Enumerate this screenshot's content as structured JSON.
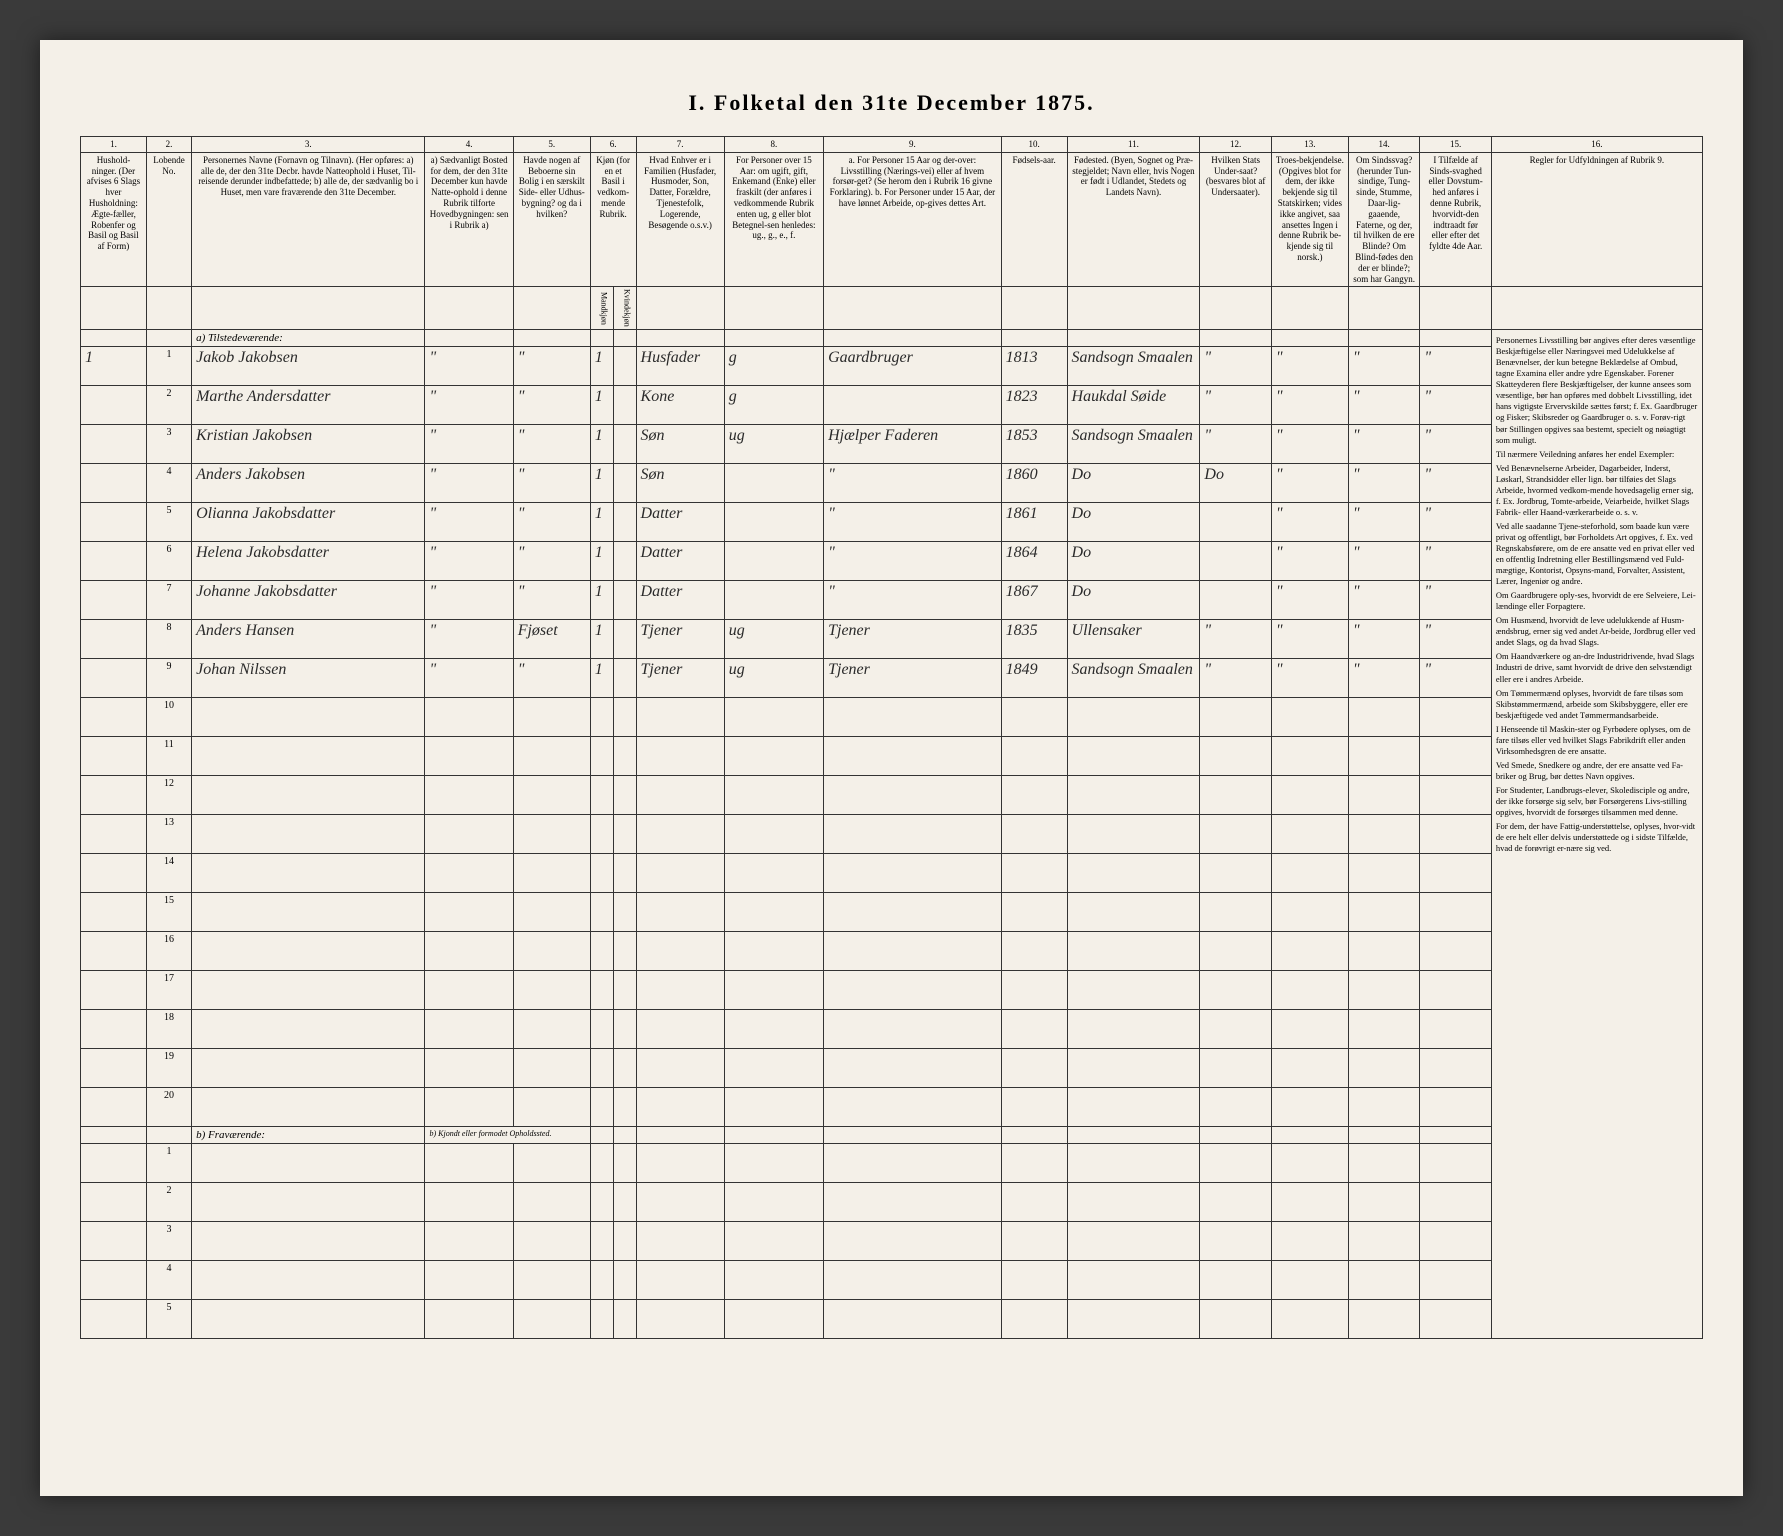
{
  "title": "I. Folketal den 31te December 1875.",
  "columns": {
    "1": {
      "num": "1.",
      "head": "Hushold-\nninger.\n(Der afvises 6 Slags hver Husholdning: Ægte-fæller, Robenfer og Basil og Basil af Form)"
    },
    "2": {
      "num": "2.",
      "head": "Lobende No."
    },
    "3": {
      "num": "3.",
      "head": "Personernes Navne (Fornavn og Tilnavn).\n(Her opføres:\na) alle de, der den 31te Decbr. havde Natteophold i Huset, Til-reisende derunder indbefattede;\nb) alle de, der sædvanlig bo i Huset, men vare fraværende den 31te December."
    },
    "4": {
      "num": "4.",
      "head": "a) Sædvanligt Bosted for dem, der den 31te December kun havde Natte-ophold i denne Rubrik tilforte Hovedbygningen: sen i Rubrik a)"
    },
    "5": {
      "num": "5.",
      "head": "Havde nogen af Beboerne sin Bolig i en særskilt Side- eller Udhus-bygning? og da i hvilken?"
    },
    "6": {
      "num": "6.",
      "head": "Kjøn (for en et Basil i vedkom-mende Rubrik."
    },
    "7": {
      "num": "7.",
      "head": "Hvad Enhver er i Familien\n(Husfader, Husmoder, Son, Datter, Forældre, Tjenestefolk, Logerende, Besøgende o.s.v.)"
    },
    "8": {
      "num": "8.",
      "head": "For Personer over 15 Aar: om ugift, gift, Enkemand (Enke) eller fraskilt (der anføres i vedkommende Rubrik enten ug, g eller blot Betegnel-sen henledes: ug., g., e., f."
    },
    "9": {
      "num": "9.",
      "head": "a. For Personer 15 Aar og der-over: Livsstilling (Nærings-vei) eller af hvem forsør-get? (Se herom den i Rubrik 16 givne Forklaring).\nb. For Personer under 15 Aar, der have lønnet Arbeide, op-gives dettes Art."
    },
    "10": {
      "num": "10.",
      "head": "Fødsels-aar."
    },
    "11": {
      "num": "11.",
      "head": "Fødested.\n(Byen, Sognet og Præ-stegjeldet; Navn eller, hvis Nogen er født i Udlandet, Stedets og Landets Navn)."
    },
    "12": {
      "num": "12.",
      "head": "Hvilken Stats Under-saat?\n(besvares blot af Undersaater)."
    },
    "13": {
      "num": "13.",
      "head": "Troes-bekjendelse.\n(Opgives blot for dem, der ikke bekjende sig til Statskirken; vides ikke angivet, saa ansettes Ingen i denne Rubrik be-kjende sig til norsk.)"
    },
    "14": {
      "num": "14.",
      "head": "Om Sindssvag? (herunder Tun-sindige, Tung-sinde, Stumme, Daar-lig-gaaende, Faterne, og der, til hvilken de ere Blinde? Om Blind-fødes den der er blinde?; som har Gangyn."
    },
    "15": {
      "num": "15.",
      "head": "I Tilfælde af Sinds-svaghed eller Dovstum-hed anføres i denne Rubrik, hvorvidt-den indtraadt før eller efter det fyldte 4de Aar."
    },
    "16": {
      "num": "16.",
      "head": "Regler for Udfyldningen\naf\nRubrik 9."
    }
  },
  "subheads": {
    "6a": "Mandkjøn",
    "6b": "Kvindekjøn"
  },
  "section_a": "a) Tilstedeværende:",
  "section_b": "b) Fraværende:",
  "section_b_sub": "b) Kjondt eller formodet Opholdssted.",
  "rows": [
    {
      "hh": "1",
      "n": "1",
      "name": "Jakob Jakobsen",
      "c4": "\"",
      "c5": "\"",
      "sex": "1",
      "fam": "Husfader",
      "stat": "g",
      "occ": "Gaardbruger",
      "year": "1813",
      "place": "Sandsogn Smaalen",
      "c12": "\"",
      "c13": "\"",
      "c14": "\"",
      "c15": "\""
    },
    {
      "hh": "",
      "n": "2",
      "name": "Marthe Andersdatter",
      "c4": "\"",
      "c5": "\"",
      "sex": "1",
      "fam": "Kone",
      "stat": "g",
      "occ": "",
      "year": "1823",
      "place": "Haukdal Søide",
      "c12": "\"",
      "c13": "\"",
      "c14": "\"",
      "c15": "\""
    },
    {
      "hh": "",
      "n": "3",
      "name": "Kristian Jakobsen",
      "c4": "\"",
      "c5": "\"",
      "sex": "1",
      "fam": "Søn",
      "stat": "ug",
      "occ": "Hjælper Faderen",
      "year": "1853",
      "place": "Sandsogn Smaalen",
      "c12": "\"",
      "c13": "\"",
      "c14": "\"",
      "c15": "\""
    },
    {
      "hh": "",
      "n": "4",
      "name": "Anders Jakobsen",
      "c4": "\"",
      "c5": "\"",
      "sex": "1",
      "fam": "Søn",
      "stat": "",
      "occ": "\"",
      "year": "1860",
      "place": "Do",
      "c12": "Do",
      "c13": "\"",
      "c14": "\"",
      "c15": "\""
    },
    {
      "hh": "",
      "n": "5",
      "name": "Olianna Jakobsdatter",
      "c4": "\"",
      "c5": "\"",
      "sex": "1",
      "fam": "Datter",
      "stat": "",
      "occ": "\"",
      "year": "1861",
      "place": "Do",
      "c12": "",
      "c13": "\"",
      "c14": "\"",
      "c15": "\""
    },
    {
      "hh": "",
      "n": "6",
      "name": "Helena Jakobsdatter",
      "c4": "\"",
      "c5": "\"",
      "sex": "1",
      "fam": "Datter",
      "stat": "",
      "occ": "\"",
      "year": "1864",
      "place": "Do",
      "c12": "",
      "c13": "\"",
      "c14": "\"",
      "c15": "\""
    },
    {
      "hh": "",
      "n": "7",
      "name": "Johanne Jakobsdatter",
      "c4": "\"",
      "c5": "\"",
      "sex": "1",
      "fam": "Datter",
      "stat": "",
      "occ": "\"",
      "year": "1867",
      "place": "Do",
      "c12": "",
      "c13": "\"",
      "c14": "\"",
      "c15": "\""
    },
    {
      "hh": "",
      "n": "8",
      "name": "Anders Hansen",
      "c4": "\"",
      "c5": "Fjøset",
      "sex": "1",
      "fam": "Tjener",
      "stat": "ug",
      "occ": "Tjener",
      "year": "1835",
      "place": "Ullensaker",
      "c12": "\"",
      "c13": "\"",
      "c14": "\"",
      "c15": "\""
    },
    {
      "hh": "",
      "n": "9",
      "name": "Johan Nilssen",
      "c4": "\"",
      "c5": "\"",
      "sex": "1",
      "fam": "Tjener",
      "stat": "ug",
      "occ": "Tjener",
      "year": "1849",
      "place": "Sandsogn Smaalen",
      "c12": "\"",
      "c13": "\"",
      "c14": "\"",
      "c15": "\""
    }
  ],
  "empty_a": [
    10,
    11,
    12,
    13,
    14,
    15,
    16,
    17,
    18,
    19,
    20
  ],
  "empty_b": [
    1,
    2,
    3,
    4,
    5
  ],
  "instructions": [
    "Personernes Livsstilling bør angives efter deres væsentlige Beskjæftigelse eller Næringsvei med Udelukkelse af Benævnelser, der kun betegne Beklædelse af Ombud, tagne Examina eller andre ydre Egenskaber. Forener Skatteyderen flere Beskjæftigelser, der kunne ansees som væsentlige, bør han opføres med dobbelt Livsstilling, idet hans vigtigste Ervervskilde sættes først; f. Ex. Gaardbruger og Fisker; Skibsreder og Gaardbruger o. s. v. Forøv-rigt bør Stillingen opgives saa bestemt, specielt og nøiagtigt som muligt.",
    "Til nærmere Veiledning anføres her endel Exempler:",
    "Ved Benævnelserne Arbeider, Dagarbeider, Inderst, Løskarl, Strandsidder eller lign. bør tilføies det Slags Arbeide, hvormed vedkom-mende hovedsagelig erner sig, f. Ex. Jordbrug, Tomte-arbeide, Veiarbeide, hvilket Slags Fabrik- eller Haand-værkerarbeide o. s. v.",
    "Ved alle saadanne Tjene-steforhold, som baade kun være privat og offentligt, bør Forholdets Art opgives, f. Ex. ved Regnskabsførere, om de ere ansatte ved en privat eller ved en offentlig Indretning eller Bestillingsmænd ved Fuld-mægtige, Kontorist, Opsyns-mand, Forvalter, Assistent, Lærer, Ingeniør og andre.",
    "Om Gaardbrugere oply-ses, hvorvidt de ere Selveiere, Lei-lændinge eller Forpagtere.",
    "Om Husmænd, hvorvidt de leve udelukkende af Husm-ændsbrug, erner sig ved andet Ar-beide, Jordbrug eller ved andet Slags, og da hvad Slags.",
    "Om Haandværkere og an-dre Industridrivende, hvad Slags Industri de drive, samt hvorvidt de drive den selvstændigt eller ere i andres Arbeide.",
    "Om Tømmermænd oplyses, hvorvidt de fare tilsøs som Skibstømmermænd, arbeide som Skibsbyggere, eller ere beskjæftigede ved andet Tømmermandsarbeide.",
    "I Henseende til Maskin-ster og Fyrbødere oplyses, om de fare tilsøs eller ved hvilket Slags Fabrikdrift eller anden Virksomhedsgren de ere ansatte.",
    "Ved Smede, Snedkere og andre, der ere ansatte ved Fa-briker og Brug, bør dettes Navn opgives.",
    "For Studenter, Landbrugs-elever, Skoledisciple og andre, der ikke forsørge sig selv, bør Forsørgerens Livs-stilling opgives, hvorvidt de forsørges tilsammen med denne.",
    "For dem, der have Fattig-understøttelse, oplyses, hvor-vidt de ere helt eller delvis understøttede og i sidste Tilfælde, hvad de forøvrigt er-nære sig ved."
  ]
}
